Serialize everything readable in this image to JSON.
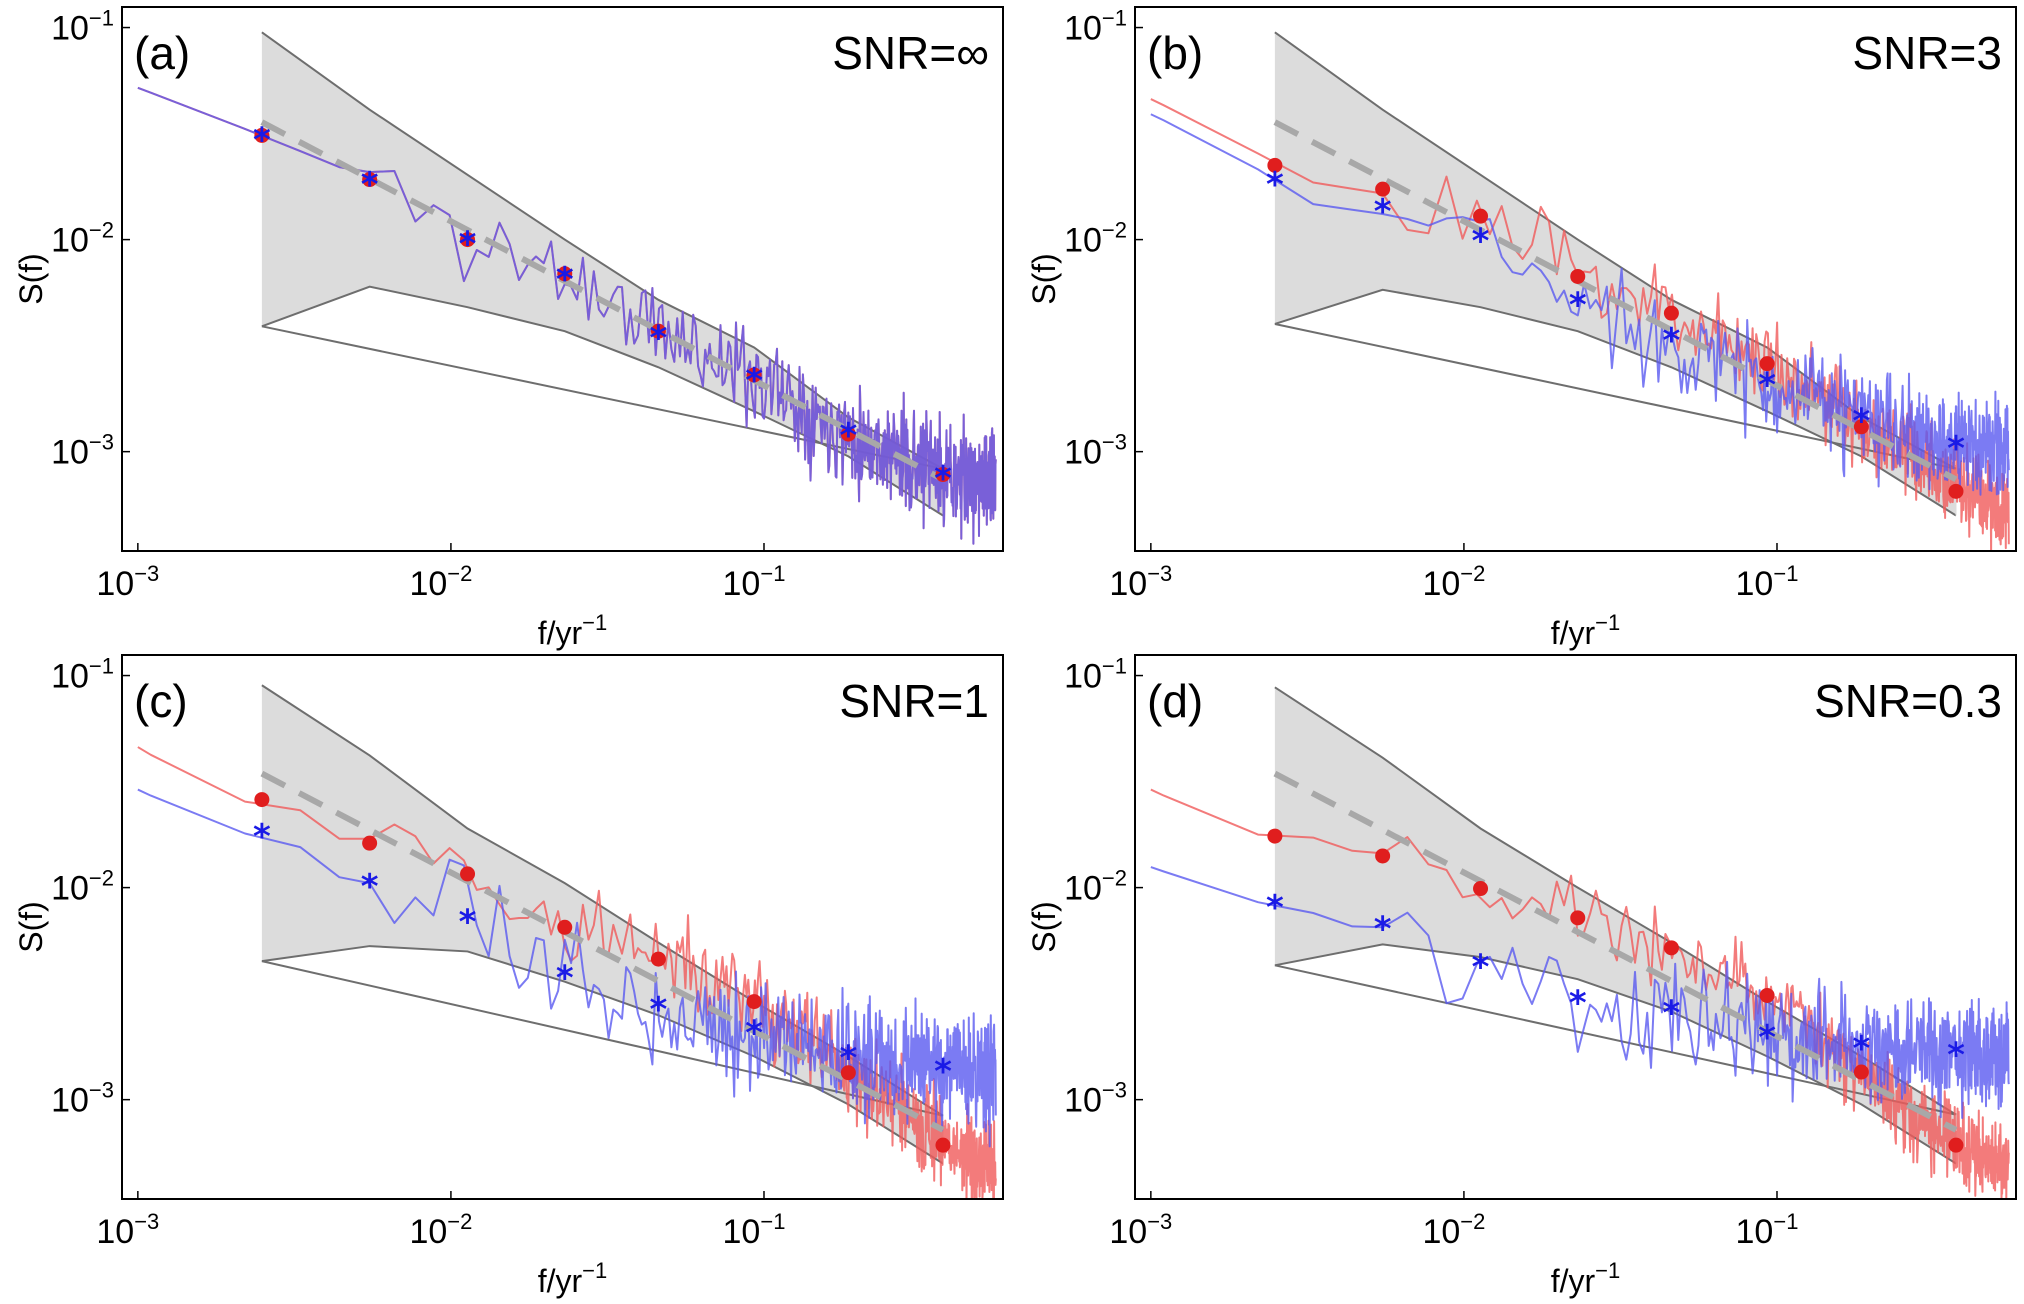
{
  "figure": {
    "panels": [
      "a",
      "b",
      "c",
      "d"
    ]
  },
  "chart_data": [
    {
      "type": "line",
      "panel_label": "(a)",
      "annotation": "SNR=∞",
      "xlabel": "f/yr",
      "xlabel_sup": "−1",
      "ylabel": "S(f)",
      "xscale": "log",
      "yscale": "log",
      "xlim": [
        0.00089,
        0.58
      ],
      "ylim": [
        0.00034,
        0.125
      ],
      "xticks": [
        {
          "base": "10",
          "exp": "−3",
          "value": 0.001
        },
        {
          "base": "10",
          "exp": "−2",
          "value": 0.01
        },
        {
          "base": "10",
          "exp": "−1",
          "value": 0.1
        }
      ],
      "yticks": [
        {
          "base": "10",
          "exp": "−3",
          "value": 0.001
        },
        {
          "base": "10",
          "exp": "−2",
          "value": 0.01
        },
        {
          "base": "10",
          "exp": "−1",
          "value": 0.1
        }
      ],
      "band": {
        "color": "#dcdcdc",
        "edge_color": "#6e6e6e",
        "upper": {
          "f": [
            0.00249,
            0.0055,
            0.0231,
            0.046,
            0.093,
            0.186,
            0.373
          ],
          "S": [
            0.095,
            0.041,
            0.01,
            0.0052,
            0.0031,
            0.00145,
            0.00083
          ]
        },
        "lower": {
          "f": [
            0.00249,
            0.0055,
            0.0113,
            0.0231,
            0.046,
            0.093,
            0.186,
            0.373
          ],
          "S": [
            0.0039,
            0.006,
            0.0048,
            0.0037,
            0.0025,
            0.00155,
            0.00095,
            0.0005
          ]
        }
      },
      "reference_line": {
        "style": "dashed",
        "color": "#a8a8a8",
        "f": [
          0.00249,
          0.373
        ],
        "S": [
          0.0358,
          0.00074
        ]
      },
      "series": [
        {
          "name": "red-spectrum",
          "color": "#f05a5a",
          "opacity": 0.8,
          "anchors": {
            "f": [
              0.001,
              0.00249,
              0.0055,
              0.0113,
              0.0231,
              0.046,
              0.093,
              0.186,
              0.373,
              0.55
            ],
            "S": [
              0.052,
              0.031,
              0.0192,
              0.01,
              0.0069,
              0.0037,
              0.0023,
              0.00121,
              0.00078,
              0.0007
            ]
          },
          "noise_start": 0.005,
          "noise_amp": 0.35,
          "seed": 11
        },
        {
          "name": "blue-spectrum",
          "color": "#5a5af0",
          "opacity": 0.8,
          "anchors": {
            "f": [
              0.001,
              0.00249,
              0.0055,
              0.0113,
              0.0231,
              0.046,
              0.093,
              0.186,
              0.373,
              0.55
            ],
            "S": [
              0.052,
              0.031,
              0.0192,
              0.01,
              0.0069,
              0.0037,
              0.0023,
              0.00121,
              0.00078,
              0.0007
            ]
          },
          "noise_start": 0.005,
          "noise_amp": 0.35,
          "seed": 11
        }
      ],
      "markers": [
        {
          "name": "red-dots",
          "symbol": "circle",
          "color": "#e01e1e",
          "f": [
            0.00249,
            0.0055,
            0.0113,
            0.0231,
            0.046,
            0.093,
            0.186,
            0.373
          ],
          "S": [
            0.031,
            0.0192,
            0.01,
            0.0069,
            0.0037,
            0.0023,
            0.00121,
            0.00078
          ]
        },
        {
          "name": "blue-stars",
          "symbol": "asterisk",
          "color": "#1a1ae6",
          "f": [
            0.00249,
            0.0055,
            0.0113,
            0.0231,
            0.046,
            0.093,
            0.186,
            0.373
          ],
          "S": [
            0.03,
            0.0185,
            0.0097,
            0.0066,
            0.0035,
            0.0022,
            0.00121,
            0.00076
          ]
        }
      ]
    },
    {
      "type": "line",
      "panel_label": "(b)",
      "annotation": "SNR=3",
      "xlabel": "f/yr",
      "xlabel_sup": "−1",
      "ylabel": "S(f)",
      "xscale": "log",
      "yscale": "log",
      "xlim": [
        0.00089,
        0.58
      ],
      "ylim": [
        0.00034,
        0.125
      ],
      "xticks": [
        {
          "base": "10",
          "exp": "−3",
          "value": 0.001
        },
        {
          "base": "10",
          "exp": "−2",
          "value": 0.01
        },
        {
          "base": "10",
          "exp": "−1",
          "value": 0.1
        }
      ],
      "yticks": [
        {
          "base": "10",
          "exp": "−3",
          "value": 0.001
        },
        {
          "base": "10",
          "exp": "−2",
          "value": 0.01
        },
        {
          "base": "10",
          "exp": "−1",
          "value": 0.1
        }
      ],
      "band": {
        "color": "#dcdcdc",
        "edge_color": "#6e6e6e",
        "upper": {
          "f": [
            0.00249,
            0.0055,
            0.0231,
            0.046,
            0.093,
            0.186,
            0.373
          ],
          "S": [
            0.095,
            0.041,
            0.01,
            0.0052,
            0.0031,
            0.00145,
            0.00083
          ]
        },
        "lower": {
          "f": [
            0.00249,
            0.0055,
            0.0113,
            0.0231,
            0.046,
            0.093,
            0.186,
            0.373
          ],
          "S": [
            0.004,
            0.0058,
            0.0048,
            0.0037,
            0.0025,
            0.00155,
            0.00095,
            0.0005
          ]
        }
      },
      "reference_line": {
        "style": "dashed",
        "color": "#a8a8a8",
        "f": [
          0.00249,
          0.373
        ],
        "S": [
          0.0358,
          0.00074
        ]
      },
      "series": [
        {
          "name": "red-spectrum",
          "color": "#f05a5a",
          "opacity": 0.8,
          "anchors": {
            "f": [
              0.001,
              0.002,
              0.00249,
              0.003,
              0.0055,
              0.0113,
              0.0231,
              0.046,
              0.093,
              0.186,
              0.373,
              0.55
            ],
            "S": [
              0.046,
              0.028,
              0.0225,
              0.019,
              0.0165,
              0.0125,
              0.0068,
              0.0046,
              0.0027,
              0.00135,
              0.00068,
              0.00055
            ]
          },
          "noise_start": 0.006,
          "noise_amp": 0.3,
          "seed": 23
        },
        {
          "name": "blue-spectrum",
          "color": "#5a5af0",
          "opacity": 0.8,
          "anchors": {
            "f": [
              0.001,
              0.002,
              0.00249,
              0.003,
              0.0055,
              0.0113,
              0.0231,
              0.046,
              0.093,
              0.186,
              0.373,
              0.55
            ],
            "S": [
              0.039,
              0.024,
              0.0185,
              0.015,
              0.0132,
              0.0098,
              0.005,
              0.0034,
              0.0021,
              0.00145,
              0.00105,
              0.00105
            ]
          },
          "noise_start": 0.006,
          "noise_amp": 0.35,
          "seed": 37
        }
      ],
      "markers": [
        {
          "name": "red-dots",
          "symbol": "circle",
          "color": "#e01e1e",
          "f": [
            0.00249,
            0.0055,
            0.0113,
            0.0231,
            0.046,
            0.093,
            0.186,
            0.373
          ],
          "S": [
            0.0224,
            0.0173,
            0.0129,
            0.0067,
            0.0045,
            0.0026,
            0.00131,
            0.00065
          ]
        },
        {
          "name": "blue-stars",
          "symbol": "asterisk",
          "color": "#1a1ae6",
          "f": [
            0.00249,
            0.0055,
            0.0113,
            0.0231,
            0.046,
            0.093,
            0.186,
            0.373
          ],
          "S": [
            0.0185,
            0.0138,
            0.01,
            0.005,
            0.0034,
            0.0021,
            0.00142,
            0.00105
          ]
        }
      ]
    },
    {
      "type": "line",
      "panel_label": "(c)",
      "annotation": "SNR=1",
      "xlabel": "f/yr",
      "xlabel_sup": "−1",
      "ylabel": "S(f)",
      "xscale": "log",
      "yscale": "log",
      "xlim": [
        0.00089,
        0.58
      ],
      "ylim": [
        0.00034,
        0.125
      ],
      "xticks": [
        {
          "base": "10",
          "exp": "−3",
          "value": 0.001
        },
        {
          "base": "10",
          "exp": "−2",
          "value": 0.01
        },
        {
          "base": "10",
          "exp": "−1",
          "value": 0.1
        }
      ],
      "yticks": [
        {
          "base": "10",
          "exp": "−3",
          "value": 0.001
        },
        {
          "base": "10",
          "exp": "−2",
          "value": 0.01
        },
        {
          "base": "10",
          "exp": "−1",
          "value": 0.1
        }
      ],
      "band": {
        "color": "#dcdcdc",
        "edge_color": "#6e6e6e",
        "upper": {
          "f": [
            0.00249,
            0.0055,
            0.0113,
            0.0231,
            0.046,
            0.093,
            0.186,
            0.373
          ],
          "S": [
            0.09,
            0.042,
            0.019,
            0.0105,
            0.0055,
            0.0029,
            0.0016,
            0.00084
          ]
        },
        "lower": {
          "f": [
            0.00249,
            0.0055,
            0.0113,
            0.0231,
            0.046,
            0.093,
            0.186,
            0.373
          ],
          "S": [
            0.0045,
            0.0053,
            0.005,
            0.0036,
            0.0025,
            0.0016,
            0.00095,
            0.0005
          ]
        }
      },
      "reference_line": {
        "style": "dashed",
        "color": "#a8a8a8",
        "f": [
          0.00249,
          0.373
        ],
        "S": [
          0.0345,
          0.00072
        ]
      },
      "series": [
        {
          "name": "red-spectrum",
          "color": "#f05a5a",
          "opacity": 0.8,
          "anchors": {
            "f": [
              0.001,
              0.002,
              0.00249,
              0.003,
              0.004,
              0.0055,
              0.0113,
              0.0231,
              0.046,
              0.093,
              0.186,
              0.373,
              0.55
            ],
            "S": [
              0.046,
              0.025,
              0.026,
              0.027,
              0.017,
              0.017,
              0.012,
              0.0068,
              0.0048,
              0.003,
              0.00135,
              0.00062,
              0.00048
            ]
          },
          "noise_start": 0.006,
          "noise_amp": 0.32,
          "seed": 41
        },
        {
          "name": "blue-spectrum",
          "color": "#5a5af0",
          "opacity": 0.8,
          "anchors": {
            "f": [
              0.001,
              0.002,
              0.00249,
              0.003,
              0.004,
              0.0055,
              0.0113,
              0.0231,
              0.046,
              0.093,
              0.186,
              0.373,
              0.55
            ],
            "S": [
              0.029,
              0.018,
              0.018,
              0.018,
              0.0115,
              0.0105,
              0.0068,
              0.0037,
              0.0027,
              0.0021,
              0.0016,
              0.00138,
              0.00135
            ]
          },
          "noise_start": 0.006,
          "noise_amp": 0.38,
          "seed": 53
        }
      ],
      "markers": [
        {
          "name": "red-dots",
          "symbol": "circle",
          "color": "#e01e1e",
          "f": [
            0.00249,
            0.0055,
            0.0113,
            0.0231,
            0.046,
            0.093,
            0.186,
            0.373
          ],
          "S": [
            0.026,
            0.0162,
            0.0116,
            0.0065,
            0.0046,
            0.0029,
            0.00134,
            0.00061
          ]
        },
        {
          "name": "blue-stars",
          "symbol": "asterisk",
          "color": "#1a1ae6",
          "f": [
            0.00249,
            0.0055,
            0.0113,
            0.0231,
            0.046,
            0.093,
            0.186,
            0.373
          ],
          "S": [
            0.0177,
            0.0103,
            0.007,
            0.0038,
            0.0027,
            0.0021,
            0.0016,
            0.00138
          ]
        }
      ]
    },
    {
      "type": "line",
      "panel_label": "(d)",
      "annotation": "SNR=0.3",
      "xlabel": "f/yr",
      "xlabel_sup": "−1",
      "ylabel": "S(f)",
      "xscale": "log",
      "yscale": "log",
      "xlim": [
        0.00089,
        0.58
      ],
      "ylim": [
        0.00034,
        0.125
      ],
      "xticks": [
        {
          "base": "10",
          "exp": "−3",
          "value": 0.001
        },
        {
          "base": "10",
          "exp": "−2",
          "value": 0.01
        },
        {
          "base": "10",
          "exp": "−1",
          "value": 0.1
        }
      ],
      "yticks": [
        {
          "base": "10",
          "exp": "−3",
          "value": 0.001
        },
        {
          "base": "10",
          "exp": "−2",
          "value": 0.01
        },
        {
          "base": "10",
          "exp": "−1",
          "value": 0.1
        }
      ],
      "band": {
        "color": "#dcdcdc",
        "edge_color": "#6e6e6e",
        "upper": {
          "f": [
            0.00249,
            0.0055,
            0.0113,
            0.0231,
            0.046,
            0.093,
            0.186,
            0.373
          ],
          "S": [
            0.088,
            0.041,
            0.019,
            0.01,
            0.0055,
            0.0029,
            0.0016,
            0.00085
          ]
        },
        "lower": {
          "f": [
            0.00249,
            0.0055,
            0.0113,
            0.0231,
            0.046,
            0.093,
            0.186,
            0.373
          ],
          "S": [
            0.0043,
            0.0054,
            0.0047,
            0.0037,
            0.0026,
            0.0016,
            0.00095,
            0.0005
          ]
        }
      },
      "reference_line": {
        "style": "dashed",
        "color": "#a8a8a8",
        "f": [
          0.00249,
          0.373
        ],
        "S": [
          0.0345,
          0.00072
        ]
      },
      "series": [
        {
          "name": "red-spectrum",
          "color": "#f05a5a",
          "opacity": 0.8,
          "anchors": {
            "f": [
              0.001,
              0.002,
              0.00249,
              0.004,
              0.005,
              0.0055,
              0.006,
              0.0113,
              0.0231,
              0.046,
              0.093,
              0.186,
              0.373,
              0.55
            ],
            "S": [
              0.029,
              0.018,
              0.0175,
              0.017,
              0.0125,
              0.0145,
              0.015,
              0.0098,
              0.0072,
              0.0052,
              0.0031,
              0.00135,
              0.00061,
              0.00049
            ]
          },
          "noise_start": 0.006,
          "noise_amp": 0.28,
          "seed": 67
        },
        {
          "name": "blue-spectrum",
          "color": "#5a5af0",
          "opacity": 0.8,
          "anchors": {
            "f": [
              0.001,
              0.002,
              0.00249,
              0.004,
              0.005,
              0.0055,
              0.006,
              0.0113,
              0.0231,
              0.046,
              0.093,
              0.186,
              0.373,
              0.55
            ],
            "S": [
              0.0125,
              0.0088,
              0.0082,
              0.0072,
              0.0058,
              0.0065,
              0.007,
              0.0042,
              0.0029,
              0.0026,
              0.002,
              0.00177,
              0.00165,
              0.00165
            ]
          },
          "noise_start": 0.006,
          "noise_amp": 0.38,
          "seed": 79
        }
      ],
      "markers": [
        {
          "name": "red-dots",
          "symbol": "circle",
          "color": "#e01e1e",
          "f": [
            0.00249,
            0.0055,
            0.0113,
            0.0231,
            0.046,
            0.093,
            0.186,
            0.373
          ],
          "S": [
            0.0175,
            0.0141,
            0.0099,
            0.0072,
            0.0052,
            0.0031,
            0.00135,
            0.00061
          ]
        },
        {
          "name": "blue-stars",
          "symbol": "asterisk",
          "color": "#1a1ae6",
          "f": [
            0.00249,
            0.0055,
            0.0113,
            0.0231,
            0.046,
            0.093,
            0.186,
            0.373
          ],
          "S": [
            0.0082,
            0.0065,
            0.0043,
            0.0029,
            0.0026,
            0.002,
            0.00177,
            0.00165
          ]
        }
      ]
    }
  ]
}
